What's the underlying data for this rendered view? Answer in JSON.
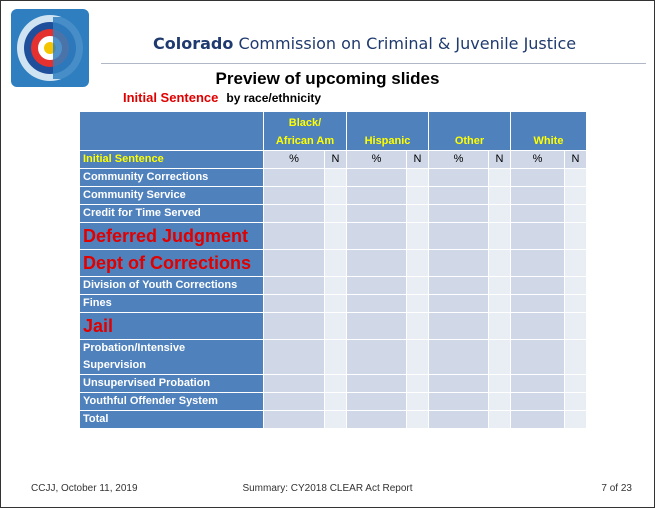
{
  "header": {
    "org_bold": "Colorado",
    "org_rest": "Commission on Criminal & Juvenile Justice"
  },
  "title": "Preview of upcoming slides",
  "subtitle": {
    "highlight": "Initial Sentence",
    "text": "by race/ethnicity"
  },
  "table": {
    "groups": [
      "Black/\nAfrican Am",
      "Hispanic",
      "Other",
      "White"
    ],
    "row_header": "Initial Sentence",
    "subheaders": [
      "%",
      "N",
      "%",
      "N",
      "%",
      "N",
      "%",
      "N"
    ],
    "rows": [
      {
        "label": "Community Corrections",
        "big": false
      },
      {
        "label": "Community Service",
        "big": false
      },
      {
        "label": "Credit for Time Served",
        "big": false
      },
      {
        "label": "Deferred Judgment",
        "big": true
      },
      {
        "label": "Dept of Corrections",
        "big": true
      },
      {
        "label": "Division of Youth Corrections",
        "big": false
      },
      {
        "label": "Fines",
        "big": false
      },
      {
        "label": "Jail",
        "big": true
      },
      {
        "label": "Probation/Intensive\nSupervision",
        "big": false
      },
      {
        "label": "Unsupervised Probation",
        "big": false
      },
      {
        "label": "Youthful Offender System",
        "big": false
      },
      {
        "label": "Total",
        "big": false
      }
    ]
  },
  "footer": {
    "left": "CCJJ, October 11, 2019",
    "center": "Summary: CY2018 CLEAR Act Report",
    "right": "7 of 23"
  }
}
